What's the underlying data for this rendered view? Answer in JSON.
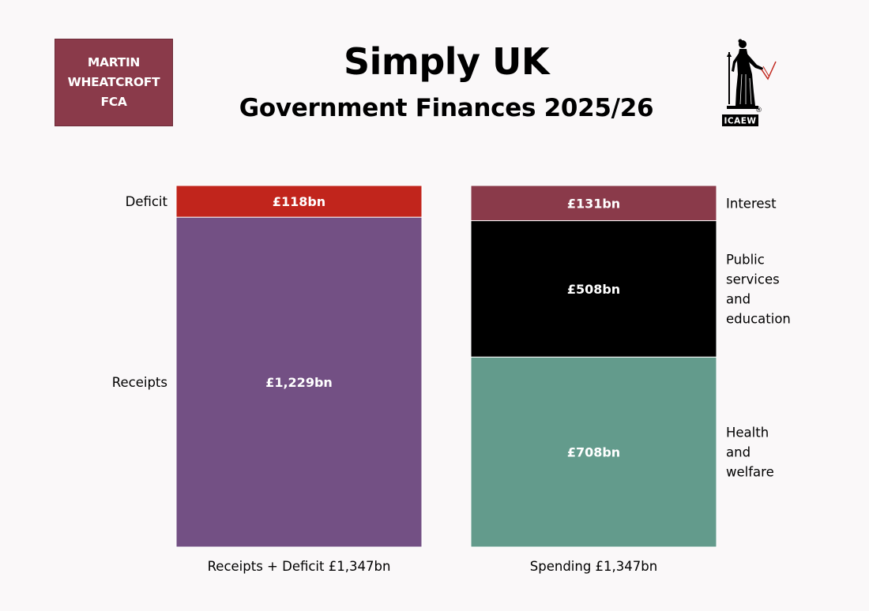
{
  "author": {
    "lines": [
      "MARTIN",
      "WHEATCROFT",
      "FCA"
    ],
    "color": "#8a3a4a"
  },
  "header": {
    "title": "Simply UK",
    "subtitle": "Government Finances 2025/26"
  },
  "logo": {
    "text": "ICAEW",
    "registered_mark": "®",
    "icon": "icaew-lady-figure-logo"
  },
  "chart_data": {
    "type": "bar",
    "stacked": true,
    "unit": "£bn",
    "ylim": [
      0,
      1347
    ],
    "columns": [
      {
        "label": "Receipts + Deficit £1,347bn",
        "segments": [
          {
            "name": "Receipts",
            "value": 1229,
            "value_label": "£1,229bn",
            "color": "#735084",
            "side_label": [
              "Receipts"
            ]
          },
          {
            "name": "Deficit",
            "value": 118,
            "value_label": "£118bn",
            "color": "#c1251c",
            "side_label": [
              "Deficit"
            ]
          }
        ]
      },
      {
        "label": "Spending £1,347bn",
        "segments": [
          {
            "name": "Health and welfare",
            "value": 708,
            "value_label": "£708bn",
            "color": "#639b8c",
            "side_label": [
              "Health",
              "and",
              "welfare"
            ]
          },
          {
            "name": "Public services and education",
            "value": 508,
            "value_label": "£508bn",
            "color": "#000000",
            "side_label": [
              "Public",
              "services",
              "and",
              "education"
            ]
          },
          {
            "name": "Interest",
            "value": 131,
            "value_label": "£131bn",
            "color": "#8a3a4a",
            "side_label": [
              "Interest"
            ]
          }
        ]
      }
    ],
    "grid": false,
    "legend": "none"
  }
}
